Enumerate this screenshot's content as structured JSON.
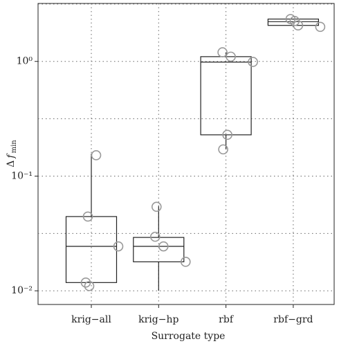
{
  "chart_data": {
    "type": "box",
    "xlabel": "Surrogate type",
    "ylabel": {
      "symbol": "Δ",
      "variable": "f",
      "subscript": "min"
    },
    "categories": [
      "krig−all",
      "krig−hp",
      "rbf",
      "rbf−grd"
    ],
    "boxes": [
      {
        "whisker_low": 0.0118,
        "q1": 0.0118,
        "median": 0.0244,
        "q3": 0.0444,
        "whisker_high": 0.157,
        "points": [
          0.0118,
          0.011,
          0.0444,
          0.152,
          0.0244
        ]
      },
      {
        "whisker_low": 0.01,
        "q1": 0.0179,
        "median": 0.0244,
        "q3": 0.0292,
        "whisker_high": 0.0546,
        "points": [
          0.054,
          0.0296,
          0.0244,
          0.0179
        ]
      },
      {
        "whisker_low": 0.171,
        "q1": 0.229,
        "median": 0.986,
        "q3": 1.1,
        "whisker_high": 1.2,
        "points": [
          1.2,
          1.1,
          0.99,
          0.229,
          0.171
        ]
      },
      {
        "whisker_low": 2.0,
        "q1": 2.06,
        "median": 2.22,
        "q3": 2.34,
        "whisker_high": 2.34,
        "points": [
          2.06,
          2.0,
          2.25,
          2.34
        ]
      }
    ],
    "log_scale": true,
    "ylim": [
      0.0076,
      3.2
    ],
    "yticks": [
      {
        "value": 0.01,
        "label": "10⁻²"
      },
      {
        "value": 0.1,
        "label": "10⁻¹"
      },
      {
        "value": 1,
        "label": "10⁰"
      }
    ],
    "ygrid": [
      0.01,
      0.0316,
      0.1,
      0.316,
      1,
      3.16
    ],
    "grid": true
  }
}
